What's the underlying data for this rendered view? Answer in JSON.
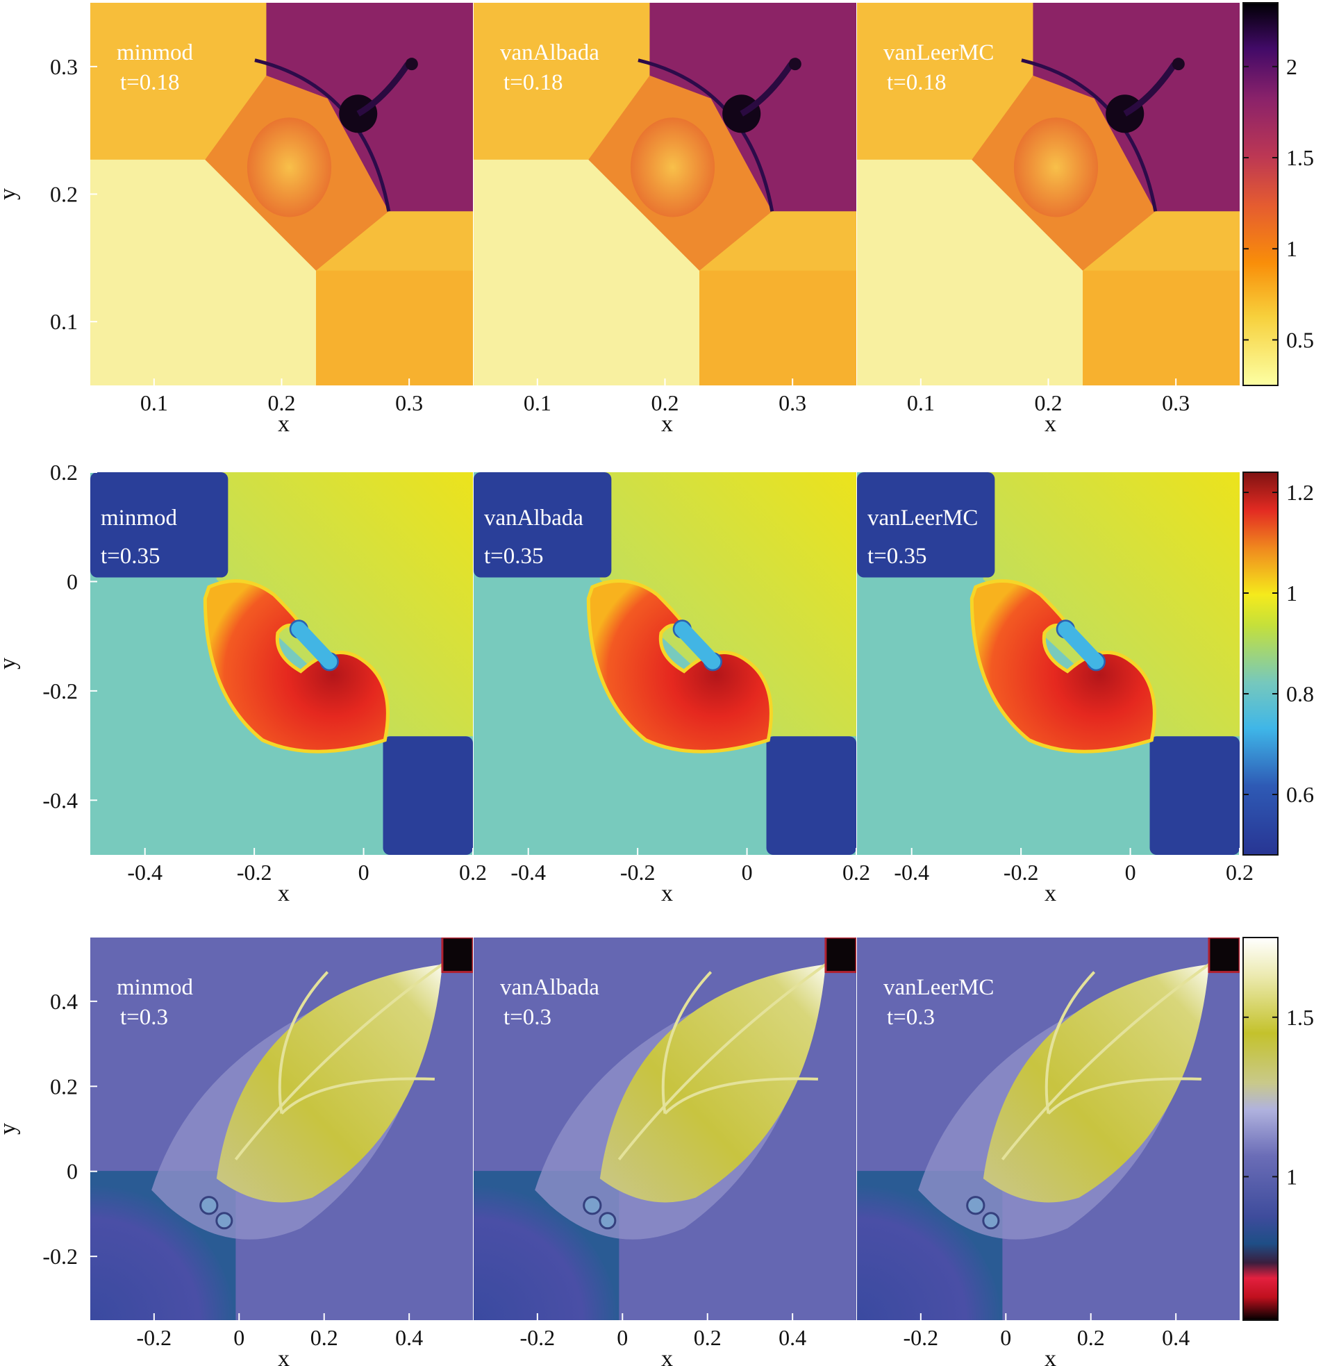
{
  "figure": {
    "rows": [
      {
        "id": "row1",
        "colormap": "inferno",
        "colorbar": {
          "min": 0.25,
          "max": 2.35,
          "ticks": [
            0.5,
            1,
            1.5,
            2
          ],
          "tick_labels": [
            "0.5",
            "1",
            "1.5",
            "2"
          ]
        },
        "xlabel": "x",
        "ylabel": "y",
        "xticks": [
          0.1,
          0.2,
          0.3
        ],
        "xtick_labels": [
          "0.1",
          "0.2",
          "0.3"
        ],
        "yticks": [
          0.1,
          0.2,
          0.3
        ],
        "ytick_labels": [
          "0.1",
          "0.2",
          "0.3"
        ],
        "xlim": [
          0.05,
          0.35
        ],
        "ylim": [
          0.05,
          0.35
        ],
        "panels": [
          {
            "method": "minmod",
            "time": "t=0.18"
          },
          {
            "method": "vanAlbada",
            "time": "t=0.18"
          },
          {
            "method": "vanLeerMC",
            "time": "t=0.18"
          }
        ]
      },
      {
        "id": "row2",
        "colormap": "jet",
        "colorbar": {
          "min": 0.48,
          "max": 1.24,
          "ticks": [
            0.6,
            0.8,
            1,
            1.2
          ],
          "tick_labels": [
            "0.6",
            "0.8",
            "1",
            "1.2"
          ]
        },
        "xlabel": "x",
        "ylabel": "y",
        "xticks": [
          -0.4,
          -0.2,
          0,
          0.2
        ],
        "xtick_labels": [
          "-0.4",
          "-0.2",
          "0",
          "0.2"
        ],
        "yticks": [
          -0.4,
          -0.2,
          0,
          0.2
        ],
        "ytick_labels": [
          "-0.4",
          "-0.2",
          "0",
          "0.2"
        ],
        "xlim": [
          -0.5,
          0.2
        ],
        "ylim": [
          -0.5,
          0.2
        ],
        "panels": [
          {
            "method": "minmod",
            "time": "t=0.35"
          },
          {
            "method": "vanAlbada",
            "time": "t=0.35"
          },
          {
            "method": "vanLeerMC",
            "time": "t=0.35"
          }
        ]
      },
      {
        "id": "row3",
        "colormap": "purple-olive",
        "colorbar": {
          "min": 0.55,
          "max": 1.75,
          "ticks": [
            1,
            1.5
          ],
          "tick_labels": [
            "1",
            "1.5"
          ]
        },
        "xlabel": "x",
        "ylabel": "y",
        "xticks": [
          -0.2,
          0,
          0.2,
          0.4
        ],
        "xtick_labels": [
          "-0.2",
          "0",
          "0.2",
          "0.4"
        ],
        "yticks": [
          -0.2,
          0,
          0.2,
          0.4
        ],
        "ytick_labels": [
          "-0.2",
          "0",
          "0.2",
          "0.4"
        ],
        "xlim": [
          -0.35,
          0.55
        ],
        "ylim": [
          -0.35,
          0.55
        ],
        "panels": [
          {
            "method": "minmod",
            "time": "t=0.3"
          },
          {
            "method": "vanAlbada",
            "time": "t=0.3"
          },
          {
            "method": "vanLeerMC",
            "time": "t=0.3"
          }
        ]
      }
    ]
  },
  "chart_data": [
    {
      "type": "heatmap",
      "title": "",
      "xlabel": "x",
      "ylabel": "y",
      "xlim": [
        0.05,
        0.35
      ],
      "ylim": [
        0.05,
        0.35
      ],
      "colorbar_range": [
        0.25,
        2.35
      ],
      "series": [
        {
          "name": "minmod",
          "time": 0.18
        },
        {
          "name": "vanAlbada",
          "time": 0.18
        },
        {
          "name": "vanLeerMC",
          "time": 0.18
        }
      ],
      "regions": [
        {
          "x": [
            0.05,
            0.145
          ],
          "y": [
            0.05,
            0.225
          ],
          "value": 0.3
        },
        {
          "x": [
            0.23,
            0.35
          ],
          "y": [
            0.05,
            0.15
          ],
          "value": 0.6
        },
        {
          "x": [
            0.05,
            0.185
          ],
          "y": [
            0.225,
            0.35
          ],
          "value": 0.6
        },
        {
          "x": [
            0.25,
            0.35
          ],
          "y": [
            0.23,
            0.35
          ],
          "value": 1.3
        },
        {
          "x": [
            0.26,
            0.26
          ],
          "y": [
            0.275,
            0.275
          ],
          "value": 2.3
        }
      ]
    },
    {
      "type": "heatmap",
      "title": "",
      "xlabel": "x",
      "ylabel": "y",
      "xlim": [
        -0.5,
        0.2
      ],
      "ylim": [
        -0.5,
        0.2
      ],
      "colorbar_range": [
        0.48,
        1.24
      ],
      "series": [
        {
          "name": "minmod",
          "time": 0.35
        },
        {
          "name": "vanAlbada",
          "time": 0.35
        },
        {
          "name": "vanLeerMC",
          "time": 0.35
        }
      ],
      "regions": [
        {
          "x": [
            -0.5,
            -0.27
          ],
          "y": [
            0.0,
            0.2
          ],
          "value": 0.55
        },
        {
          "x": [
            0.03,
            0.2
          ],
          "y": [
            -0.5,
            -0.28
          ],
          "value": 0.55
        },
        {
          "x": [
            -0.27,
            0.2
          ],
          "y": [
            -0.28,
            0.2
          ],
          "value": 0.95
        },
        {
          "x": [
            -0.5,
            0.03
          ],
          "y": [
            -0.5,
            0.0
          ],
          "value": 0.8
        },
        {
          "x": [
            -0.27,
            0.03
          ],
          "y": [
            -0.32,
            0.0
          ],
          "value": 1.15
        }
      ]
    },
    {
      "type": "heatmap",
      "title": "",
      "xlabel": "x",
      "ylabel": "y",
      "xlim": [
        -0.35,
        0.55
      ],
      "ylim": [
        -0.35,
        0.55
      ],
      "colorbar_range": [
        0.55,
        1.75
      ],
      "series": [
        {
          "name": "minmod",
          "time": 0.3
        },
        {
          "name": "vanAlbada",
          "time": 0.3
        },
        {
          "name": "vanLeerMC",
          "time": 0.3
        }
      ],
      "regions": [
        {
          "x": [
            -0.35,
            0.55
          ],
          "y": [
            -0.35,
            0.55
          ],
          "value": 1.0
        },
        {
          "x": [
            -0.35,
            0.0
          ],
          "y": [
            -0.35,
            0.0
          ],
          "value": 0.85
        },
        {
          "x": [
            0.0,
            0.48
          ],
          "y": [
            0.0,
            0.48
          ],
          "value": 1.4
        },
        {
          "x": [
            0.48,
            0.55
          ],
          "y": [
            0.48,
            0.55
          ],
          "value": 0.55
        }
      ]
    }
  ]
}
